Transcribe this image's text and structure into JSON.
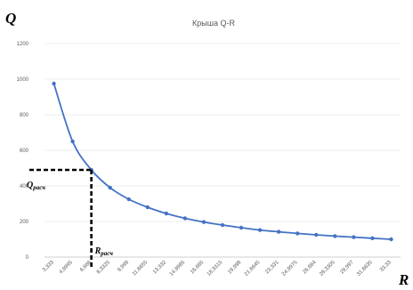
{
  "chart_data": {
    "type": "line",
    "title": "Крыша Q-R",
    "xlabel": "R",
    "ylabel": "Q",
    "ylim": [
      0,
      1200
    ],
    "y_ticks": [
      "0",
      "200",
      "400",
      "600",
      "800",
      "1000",
      "1200"
    ],
    "grid": "horizontal",
    "x_tick_labels": [
      "3,333",
      "4,9995",
      "6,666",
      "8,3325",
      "9,999",
      "11,6655",
      "13,332",
      "14,9985",
      "16,665",
      "18,3315",
      "19,998",
      "21,6645",
      "23,331",
      "24,9975",
      "26,664",
      "28,3305",
      "29,997",
      "31,6635",
      "33,33"
    ],
    "series": [
      {
        "color": "#4472c4",
        "values": [
          975,
          650,
          490,
          390,
          325,
          280,
          245,
          218,
          197,
          180,
          165,
          152,
          142,
          133,
          125,
          118,
          112,
          106,
          100
        ]
      }
    ],
    "annotations": {
      "q_label": "Q",
      "q_sub": "расч",
      "r_label": "R",
      "r_sub": "расч",
      "x_index": 2,
      "y_value": 490
    }
  }
}
